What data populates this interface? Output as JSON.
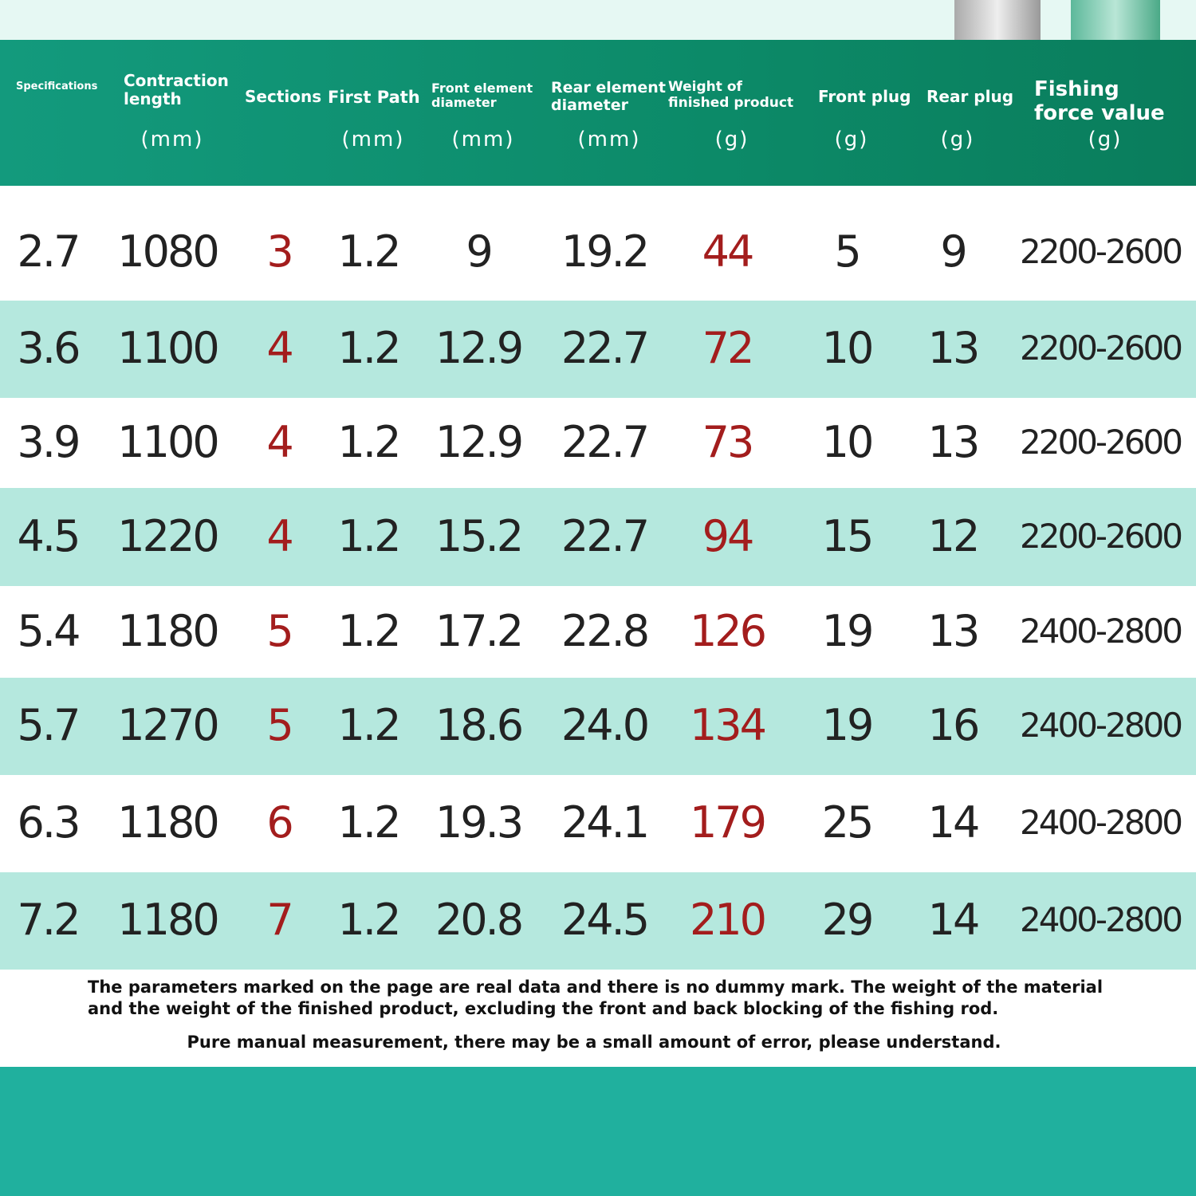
{
  "table": {
    "columns": [
      {
        "name": "Specifications"
      },
      {
        "name": "Contraction length",
        "unit": "(mm)"
      },
      {
        "name": "Sections"
      },
      {
        "name": "First Path",
        "unit": "(mm)"
      },
      {
        "name": "Front element diameter",
        "unit": "(mm)"
      },
      {
        "name": "Rear element diameter",
        "unit": "(mm)"
      },
      {
        "name": "Weight of finished product",
        "unit": "(g)"
      },
      {
        "name": "Front plug",
        "unit": "(g)"
      },
      {
        "name": "Rear plug",
        "unit": "(g)"
      },
      {
        "name": "Fishing force value",
        "unit": "(g)"
      }
    ],
    "rows": [
      [
        "2.7",
        "1080",
        "3",
        "1.2",
        "9",
        "19.2",
        "44",
        "5",
        "9",
        "2200-2600"
      ],
      [
        "3.6",
        "1100",
        "4",
        "1.2",
        "12.9",
        "22.7",
        "72",
        "10",
        "13",
        "2200-2600"
      ],
      [
        "3.9",
        "1100",
        "4",
        "1.2",
        "12.9",
        "22.7",
        "73",
        "10",
        "13",
        "2200-2600"
      ],
      [
        "4.5",
        "1220",
        "4",
        "1.2",
        "15.2",
        "22.7",
        "94",
        "15",
        "12",
        "2200-2600"
      ],
      [
        "5.4",
        "1180",
        "5",
        "1.2",
        "17.2",
        "22.8",
        "126",
        "19",
        "13",
        "2400-2800"
      ],
      [
        "5.7",
        "1270",
        "5",
        "1.2",
        "18.6",
        "24.0",
        "134",
        "19",
        "16",
        "2400-2800"
      ],
      [
        "6.3",
        "1180",
        "6",
        "1.2",
        "19.3",
        "24.1",
        "179",
        "25",
        "14",
        "2400-2800"
      ],
      [
        "7.2",
        "1180",
        "7",
        "1.2",
        "20.8",
        "24.5",
        "210",
        "29",
        "14",
        "2400-2800"
      ]
    ]
  },
  "notes": [
    "The parameters marked on the page are real data and there is no dummy mark. The weight of the material and the weight of the finished product, excluding the front and back blocking of the fishing rod.",
    "Pure manual measurement, there may be a small amount of error, please understand."
  ]
}
